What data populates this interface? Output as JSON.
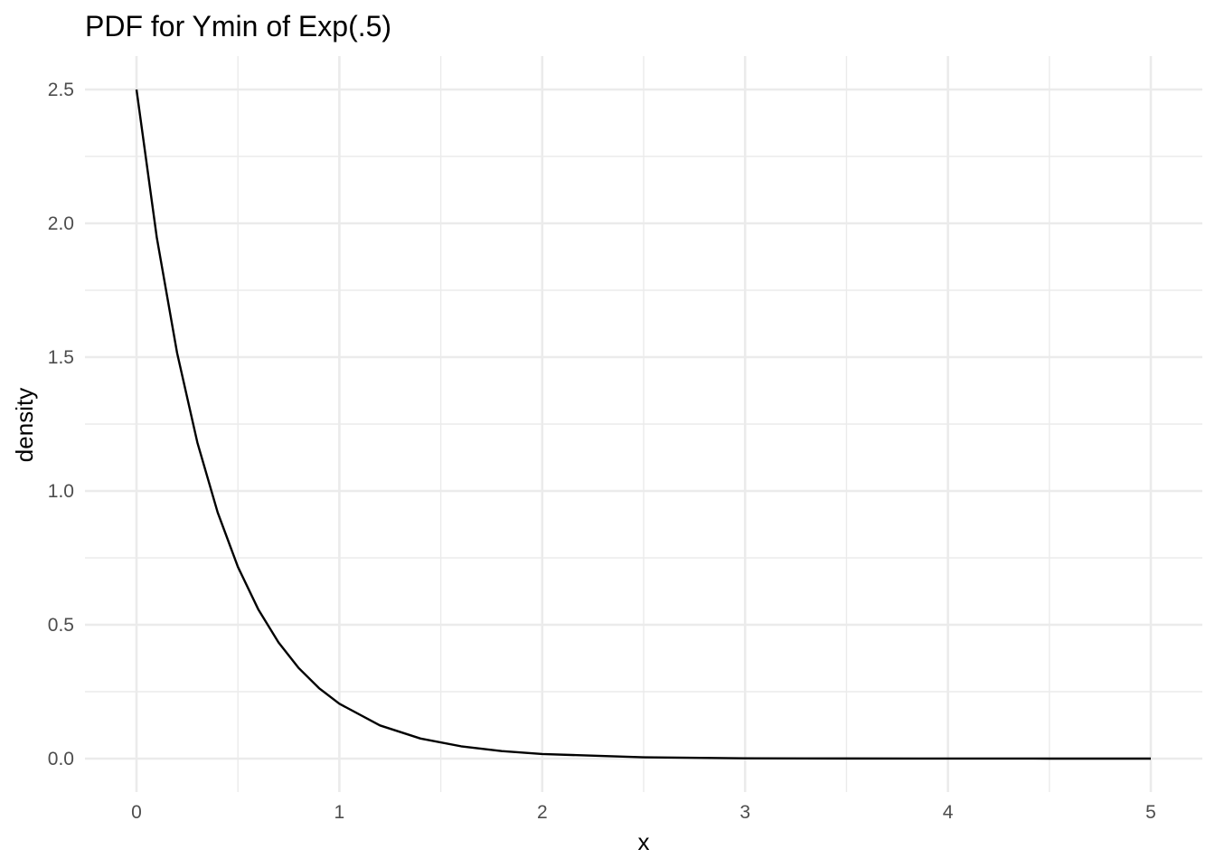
{
  "chart_data": {
    "type": "line",
    "title": "PDF for Ymin of Exp(.5)",
    "xlabel": "x",
    "ylabel": "density",
    "xlim": [
      0,
      5
    ],
    "ylim": [
      0,
      2.5
    ],
    "x_ticks": [
      "0",
      "1",
      "2",
      "3",
      "4",
      "5"
    ],
    "y_ticks": [
      "0.0",
      "0.5",
      "1.0",
      "1.5",
      "2.0",
      "2.5"
    ],
    "grid": true,
    "series": [
      {
        "x": [
          0,
          0.1,
          0.2,
          0.3,
          0.4,
          0.5,
          0.6,
          0.7,
          0.8,
          0.9,
          1.0,
          1.2,
          1.4,
          1.6,
          1.8,
          2.0,
          2.5,
          3.0,
          3.5,
          4.0,
          4.5,
          5.0
        ],
        "values": [
          2.5,
          1.947,
          1.516,
          1.181,
          0.92,
          0.716,
          0.558,
          0.434,
          0.338,
          0.263,
          0.205,
          0.124,
          0.075,
          0.046,
          0.028,
          0.017,
          0.005,
          0.001,
          0.0004,
          0.0001,
          3e-05,
          1e-05
        ],
        "color": "#000000"
      }
    ]
  }
}
